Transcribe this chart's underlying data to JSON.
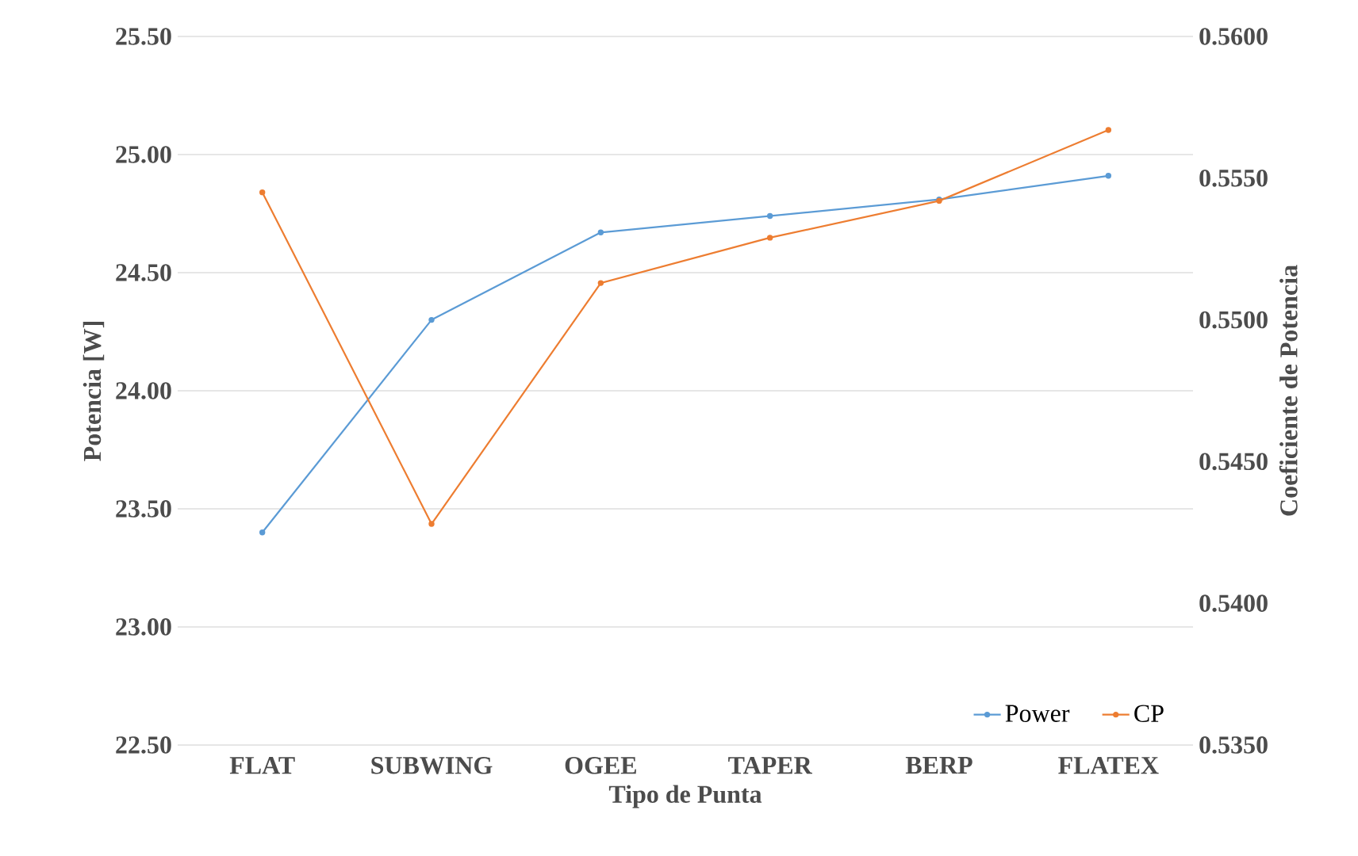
{
  "chart_data": {
    "type": "line",
    "xlabel": "Tipo de Punta",
    "ylabel": "Potencia [W]",
    "y2label": "Coeficiente de Potencia",
    "categories": [
      "FLAT",
      "SUBWING",
      "OGEE",
      "TAPER",
      "BERP",
      "FLATEX"
    ],
    "series": [
      {
        "name": "Power",
        "color": "#5b9bd5",
        "values": [
          23.4,
          24.3,
          24.67,
          24.74,
          24.81,
          24.91
        ]
      },
      {
        "name": "CP",
        "color": "#ed7d31",
        "axis": "y2",
        "values": [
          0.5545,
          0.5428,
          0.5513,
          0.5529,
          0.5542,
          0.5567
        ]
      }
    ],
    "ylim": [
      22.5,
      25.5
    ],
    "yticks": [
      {
        "value": 22.5,
        "label": "22.50"
      },
      {
        "value": 23,
        "label": "23.00"
      },
      {
        "value": 23.5,
        "label": "23.50"
      },
      {
        "value": 24,
        "label": "24.00"
      },
      {
        "value": 24.5,
        "label": "24.50"
      },
      {
        "value": 25,
        "label": "25.00"
      },
      {
        "value": 25.5,
        "label": "25.50"
      }
    ],
    "y2lim": [
      0.535,
      0.56
    ],
    "y2ticks": [
      {
        "value": 0.535,
        "label": "0.5350"
      },
      {
        "value": 0.54,
        "label": "0.5400"
      },
      {
        "value": 0.545,
        "label": "0.5450"
      },
      {
        "value": 0.55,
        "label": "0.5500"
      },
      {
        "value": 0.555,
        "label": "0.5550"
      },
      {
        "value": 0.56,
        "label": "0.5600"
      }
    ],
    "grid": "y",
    "legend": "bottom right",
    "marker": "circle",
    "line_style": "solid"
  }
}
